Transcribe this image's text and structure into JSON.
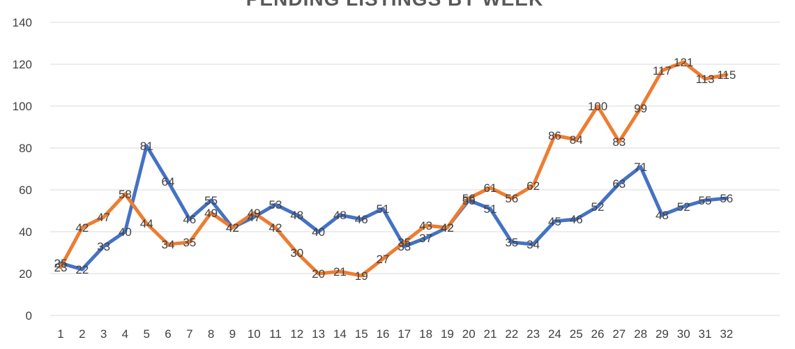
{
  "chart_data": {
    "type": "line",
    "title": "PENDING LISTINGS BY WEEK",
    "xlabel": "",
    "ylabel": "",
    "categories": [
      "1",
      "2",
      "3",
      "4",
      "5",
      "6",
      "7",
      "8",
      "9",
      "10",
      "11",
      "12",
      "13",
      "14",
      "15",
      "16",
      "17",
      "18",
      "19",
      "20",
      "21",
      "22",
      "23",
      "24",
      "25",
      "26",
      "27",
      "28",
      "29",
      "30",
      "31",
      "32"
    ],
    "ylim": [
      0,
      140
    ],
    "yticks": [
      0,
      20,
      40,
      60,
      80,
      100,
      120,
      140
    ],
    "grid": true,
    "legend": "none",
    "series": [
      {
        "color": "#4472c4",
        "values": [
          25,
          22,
          33,
          40,
          81,
          64,
          46,
          55,
          42,
          47,
          53,
          48,
          40,
          48,
          46,
          51,
          33,
          37,
          42,
          55,
          51,
          35,
          34,
          45,
          46,
          52,
          63,
          71,
          48,
          52,
          55,
          56
        ]
      },
      {
        "color": "#ed7d31",
        "values": [
          23,
          42,
          47,
          58,
          44,
          34,
          35,
          49,
          42,
          49,
          42,
          30,
          20,
          21,
          19,
          27,
          35,
          43,
          42,
          56,
          61,
          56,
          62,
          86,
          84,
          100,
          83,
          99,
          117,
          121,
          113,
          115
        ]
      }
    ],
    "labels_by_series": [
      [
        "25",
        "22",
        "33",
        "40",
        "81",
        "64",
        "46",
        "55",
        "42",
        "47",
        "53",
        "48",
        "40",
        "48",
        "46",
        "51",
        "33",
        "37",
        "42",
        "55",
        "51",
        "35",
        "34",
        "45",
        "46",
        "52",
        "63",
        "71",
        "48",
        "52",
        "55",
        "56"
      ],
      [
        "23",
        "42",
        "47",
        "58",
        "44",
        "34",
        "35",
        "49",
        "42",
        "49",
        "42",
        "30",
        "20",
        "21",
        "19",
        "27",
        "35",
        "43",
        "42",
        "56",
        "61",
        "56",
        "62",
        "86",
        "84",
        "100",
        "83",
        "99",
        "117",
        "121",
        "113",
        "115"
      ]
    ]
  }
}
